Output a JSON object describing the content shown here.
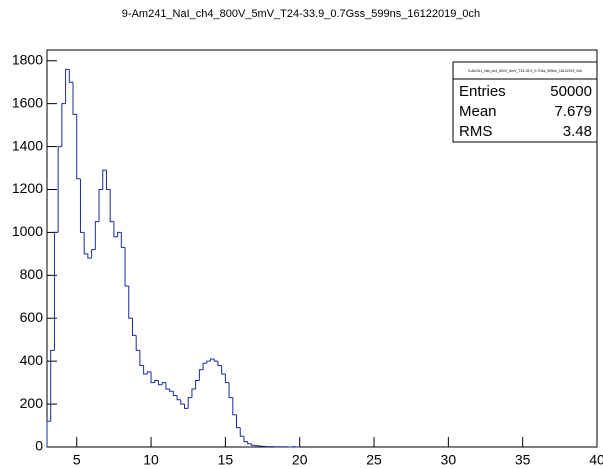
{
  "chart_data": {
    "type": "histogram",
    "title": "9-Am241_NaI_ch4_800V_5mV_T24-33.9_0.7Gss_599ns_16122019_0ch",
    "bins": [
      3,
      3.25,
      3.5,
      3.75,
      4,
      4.25,
      4.5,
      4.75,
      5,
      5.25,
      5.5,
      5.75,
      6,
      6.25,
      6.5,
      6.75,
      7,
      7.25,
      7.5,
      7.75,
      8,
      8.25,
      8.5,
      8.75,
      9,
      9.25,
      9.5,
      9.75,
      10,
      10.25,
      10.5,
      10.75,
      11,
      11.25,
      11.5,
      11.75,
      12,
      12.25,
      12.5,
      12.75,
      13,
      13.25,
      13.5,
      13.75,
      14,
      14.25,
      14.5,
      14.75,
      15,
      15.25,
      15.5,
      15.75,
      16,
      16.25,
      16.5,
      16.75,
      17,
      17.25,
      17.5,
      17.75,
      18,
      18.25,
      18.5,
      18.75,
      19,
      19.25,
      19.5,
      19.75,
      20
    ],
    "counts": [
      120,
      450,
      1000,
      1400,
      1600,
      1760,
      1700,
      1550,
      1250,
      1000,
      900,
      880,
      920,
      1050,
      1200,
      1290,
      1200,
      1050,
      980,
      1000,
      930,
      750,
      600,
      520,
      450,
      380,
      340,
      350,
      300,
      310,
      290,
      300,
      270,
      260,
      240,
      220,
      200,
      180,
      230,
      270,
      310,
      360,
      390,
      400,
      410,
      400,
      380,
      340,
      300,
      230,
      150,
      90,
      50,
      25,
      15,
      8,
      6,
      4,
      3,
      2,
      2,
      1,
      1,
      1,
      1,
      0,
      1,
      0
    ],
    "color": "#1a2a9a",
    "xlim": [
      3,
      40
    ],
    "xticks": [
      5,
      10,
      15,
      20,
      25,
      30,
      35,
      40
    ],
    "ylim": [
      0,
      1850
    ],
    "yticks": [
      0,
      200,
      400,
      600,
      800,
      1000,
      1200,
      1400,
      1600,
      1800
    ],
    "stats": [
      [
        "Entries",
        50000
      ],
      [
        "Mean",
        7.679
      ],
      [
        "RMS",
        3.48
      ]
    ]
  }
}
